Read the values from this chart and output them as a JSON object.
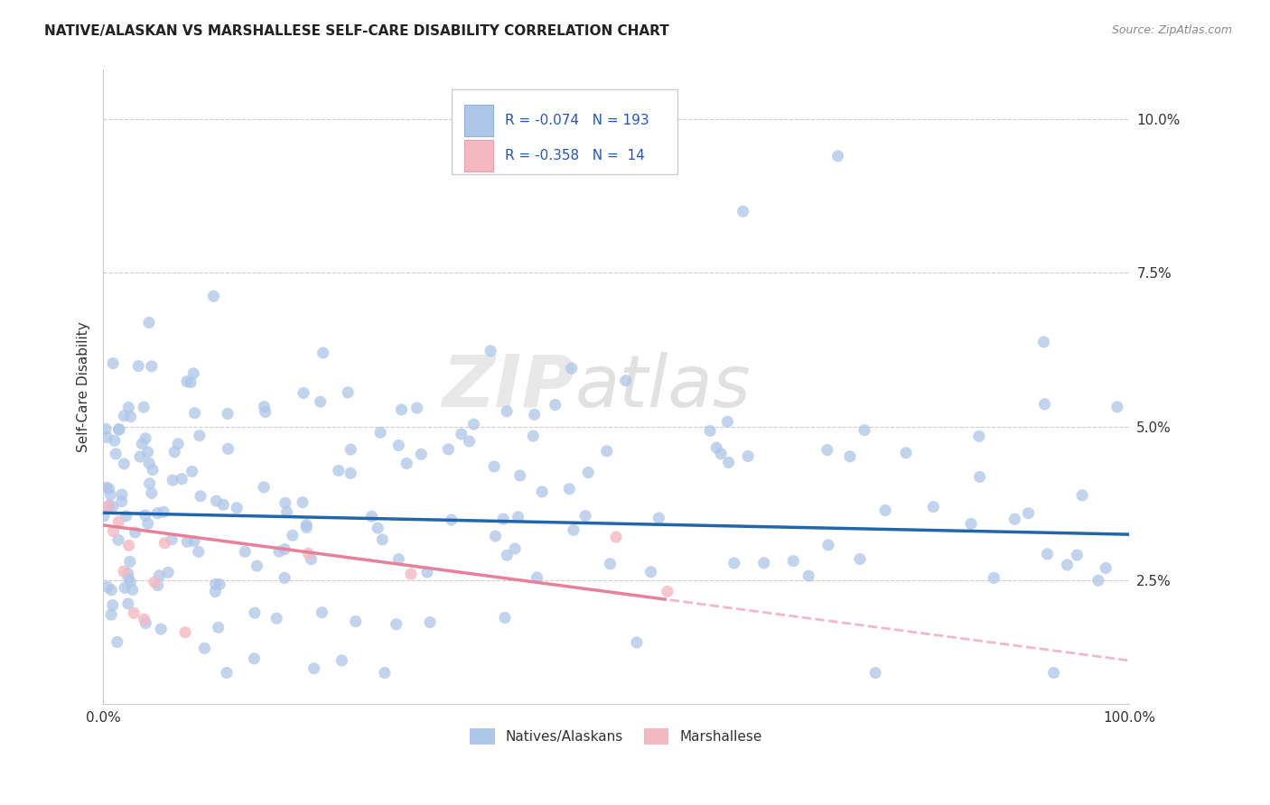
{
  "title": "NATIVE/ALASKAN VS MARSHALLESE SELF-CARE DISABILITY CORRELATION CHART",
  "source": "Source: ZipAtlas.com",
  "ylabel": "Self-Care Disability",
  "legend_labels": [
    "Natives/Alaskans",
    "Marshallese"
  ],
  "R_native": -0.074,
  "N_native": 193,
  "R_marsh": -0.358,
  "N_marsh": 14,
  "color_native": "#aec6e8",
  "color_marsh": "#f4b8c1",
  "trend_native_color": "#2166ac",
  "trend_marsh_color": "#e8809a",
  "trend_marsh_dash_color": "#f0b8c8",
  "watermark_zip": "ZIP",
  "watermark_atlas": "atlas",
  "background_color": "#ffffff",
  "grid_color": "#cccccc",
  "xlim": [
    0,
    100
  ],
  "ylim": [
    0.005,
    0.108
  ],
  "yticks": [
    0.025,
    0.05,
    0.075,
    0.1
  ],
  "ytick_labels": [
    "2.5%",
    "5.0%",
    "7.5%",
    "10.0%"
  ]
}
